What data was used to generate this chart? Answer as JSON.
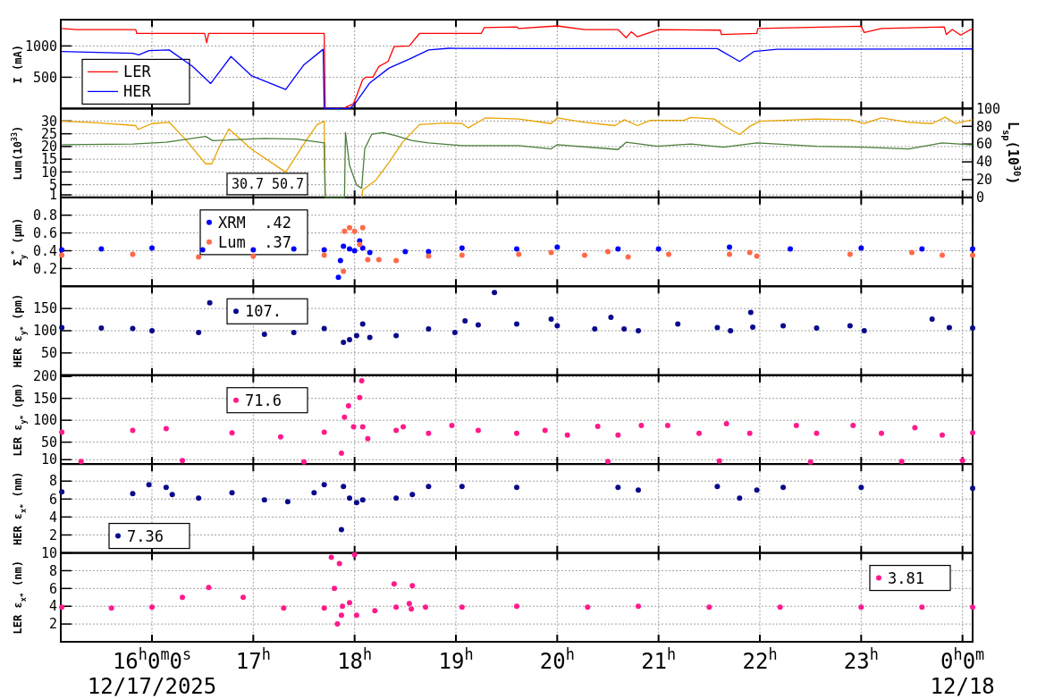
{
  "chart_data": [
    {
      "type": "line",
      "ylabel": "I (mA)",
      "xlim": [
        15.1,
        24.1
      ],
      "ylim": [
        0,
        1420
      ],
      "yticks": [
        500,
        1000
      ],
      "grid": true,
      "tick_labels": "y",
      "legend": "bottom left",
      "marker": "none",
      "line_style": "solid",
      "xticks": [
        {
          "value": 16,
          "label": null
        },
        {
          "value": 17,
          "label": null
        },
        {
          "value": 18,
          "label": null
        },
        {
          "value": 19,
          "label": null
        },
        {
          "value": 20,
          "label": null
        },
        {
          "value": 21,
          "label": null
        },
        {
          "value": 22,
          "label": null
        },
        {
          "value": 23,
          "label": null
        },
        {
          "value": 24,
          "label": null
        }
      ],
      "series": [
        {
          "name": "LER",
          "color": "#ff0000",
          "x": [
            15.11,
            15.26,
            15.84,
            15.85,
            16.52,
            16.54,
            16.56,
            17.7,
            17.71,
            17.89,
            17.99,
            18.08,
            18.11,
            18.18,
            18.24,
            18.33,
            18.39,
            18.54,
            18.64,
            19.25,
            19.28,
            19.6,
            19.62,
            20.0,
            20.27,
            20.6,
            20.68,
            20.73,
            20.79,
            21.0,
            21.61,
            21.62,
            21.97,
            21.98,
            23.0,
            23.03,
            23.2,
            23.82,
            23.84,
            23.9,
            23.98,
            24.1
          ],
          "values": [
            1278,
            1262,
            1262,
            1199,
            1199,
            1052,
            1199,
            1199,
            0,
            0,
            79,
            463,
            500,
            500,
            673,
            752,
            989,
            1000,
            1199,
            1199,
            1294,
            1305,
            1278,
            1320,
            1262,
            1262,
            1131,
            1226,
            1147,
            1262,
            1252,
            1183,
            1199,
            1278,
            1315,
            1215,
            1278,
            1305,
            1183,
            1262,
            1173,
            1278
          ]
        },
        {
          "name": "HER",
          "color": "#0000ff",
          "x": [
            15.11,
            15.81,
            15.87,
            15.97,
            16.17,
            16.4,
            16.58,
            16.78,
            16.98,
            17.32,
            17.5,
            17.69,
            17.7,
            17.95,
            18.0,
            18.15,
            18.34,
            18.54,
            18.73,
            18.93,
            19.62,
            21.58,
            21.8,
            21.94,
            22.17,
            24.1
          ],
          "values": [
            910,
            884,
            857,
            926,
            936,
            673,
            400,
            831,
            526,
            305,
            700,
            947,
            0,
            0,
            68,
            410,
            647,
            789,
            936,
            963,
            958,
            958,
            752,
            910,
            947,
            952
          ]
        }
      ]
    },
    {
      "type": "line",
      "ylabel": "Lum(10$^{33}$)",
      "y2label": "L$_{sp}$(10$^{30}$)",
      "xlim": [
        15.1,
        24.1
      ],
      "ylim": [
        0,
        34.9
      ],
      "yticks": [
        1,
        5,
        10,
        15,
        20,
        25,
        30
      ],
      "y2lim": [
        0,
        100
      ],
      "y2ticks": [
        0,
        20,
        40,
        60,
        80,
        100
      ],
      "grid": true,
      "tick_labels": "y",
      "marker": "none",
      "line_style": "solid",
      "annotations": [
        "30.7",
        "50.7"
      ],
      "xticks": [
        {
          "value": 16,
          "label": null
        },
        {
          "value": 17,
          "label": null
        },
        {
          "value": 18,
          "label": null
        },
        {
          "value": 19,
          "label": null
        },
        {
          "value": 20,
          "label": null
        },
        {
          "value": 21,
          "label": null
        },
        {
          "value": 22,
          "label": null
        },
        {
          "value": 23,
          "label": null
        },
        {
          "value": 24,
          "label": null
        }
      ],
      "series": [
        {
          "color": "#e8a400",
          "x": [
            15.11,
            15.49,
            15.84,
            15.86,
            16.0,
            16.17,
            16.33,
            16.53,
            16.59,
            16.67,
            16.76,
            16.98,
            17.32,
            17.53,
            17.63,
            17.7,
            17.71,
            17.8,
            17.97,
            18.07,
            18.08,
            18.21,
            18.34,
            18.47,
            18.64,
            18.9,
            19.06,
            19.12,
            19.29,
            19.62,
            19.94,
            20.0,
            20.27,
            20.57,
            20.66,
            20.79,
            20.92,
            21.25,
            21.32,
            21.55,
            21.64,
            21.8,
            21.9,
            22.0,
            22.56,
            22.89,
            23.03,
            23.2,
            23.47,
            23.7,
            23.83,
            23.93,
            24.1
          ],
          "values": [
            30,
            29.2,
            28.2,
            26.7,
            29,
            29.5,
            22.8,
            13.2,
            13.2,
            20.3,
            26.9,
            19,
            9.9,
            22.8,
            28.6,
            29.9,
            0,
            null,
            null,
            0,
            2.9,
            6.8,
            13.8,
            21.5,
            28.6,
            29.2,
            29,
            27.3,
            31.2,
            30.8,
            29,
            31.2,
            29.5,
            28.2,
            30.5,
            28.2,
            30.3,
            30.3,
            31.4,
            30.8,
            28.2,
            24.7,
            27.9,
            29.9,
            30.8,
            30.5,
            29,
            31.2,
            29.5,
            29,
            31.5,
            29,
            30.5
          ]
        },
        {
          "color": "#4a7f3a",
          "axis": "y2",
          "x": [
            15.11,
            15.81,
            16.14,
            16.53,
            16.6,
            17.11,
            17.43,
            17.7,
            17.71,
            17.9,
            17.91,
            17.95,
            18.02,
            18.07,
            18.1,
            18.17,
            18.28,
            18.41,
            18.57,
            18.73,
            19.06,
            19.62,
            19.94,
            20.0,
            20.6,
            20.68,
            20.99,
            21.32,
            21.64,
            21.97,
            22.56,
            23.0,
            23.47,
            23.8,
            24.1
          ],
          "values": [
            59.4,
            60.1,
            62,
            68.6,
            63.8,
            66.4,
            65.7,
            61.3,
            0,
            0,
            73,
            36,
            14,
            10.3,
            54.6,
            71.2,
            73,
            69.4,
            63.8,
            61.3,
            58.3,
            58.3,
            54.6,
            59.4,
            53.9,
            62,
            57.6,
            60.1,
            56.5,
            61.3,
            57.6,
            56.5,
            54.6,
            61.3,
            59
          ]
        }
      ]
    },
    {
      "type": "scatter",
      "ylabel": "Σ$_{y}$$^{*}$ (µm)",
      "xlim": [
        15.1,
        24.1
      ],
      "ylim": [
        0,
        1
      ],
      "yticks": [
        0.2,
        0.4,
        0.6,
        0.8
      ],
      "grid": true,
      "tick_labels": "y",
      "legend": "top left",
      "marker": "circle",
      "xticks": [
        {
          "value": 16,
          "label": null
        },
        {
          "value": 17,
          "label": null
        },
        {
          "value": 18,
          "label": null
        },
        {
          "value": 19,
          "label": null
        },
        {
          "value": 20,
          "label": null
        },
        {
          "value": 21,
          "label": null
        },
        {
          "value": 22,
          "label": null
        },
        {
          "value": 23,
          "label": null
        },
        {
          "value": 24,
          "label": null
        }
      ],
      "series": [
        {
          "name": "XRM  .42",
          "color": "#0000ff",
          "x": [
            15.11,
            15.5,
            16.0,
            16.5,
            17.0,
            17.4,
            17.7,
            17.84,
            17.86,
            17.89,
            17.95,
            18.0,
            18.05,
            18.08,
            18.15,
            18.5,
            18.73,
            19.06,
            19.6,
            20.0,
            20.6,
            21.0,
            21.7,
            22.3,
            23.0,
            23.6,
            24.1
          ],
          "values": [
            0.41,
            0.42,
            0.43,
            0.41,
            0.41,
            0.42,
            0.41,
            0.1,
            0.29,
            0.45,
            0.42,
            0.4,
            0.51,
            0.43,
            0.38,
            0.39,
            0.39,
            0.43,
            0.42,
            0.44,
            0.42,
            0.42,
            0.44,
            0.42,
            0.43,
            0.42,
            0.42
          ]
        },
        {
          "name": "Lum  .37",
          "color": "#ff6a4a",
          "x": [
            15.11,
            15.81,
            16.46,
            17.0,
            17.7,
            17.89,
            17.9,
            17.95,
            18.0,
            18.05,
            18.08,
            18.13,
            18.24,
            18.41,
            18.73,
            19.06,
            19.62,
            19.94,
            20.27,
            20.5,
            20.7,
            21.1,
            21.7,
            21.9,
            21.97,
            22.89,
            23.5,
            23.8,
            24.1
          ],
          "values": [
            0.35,
            0.36,
            0.33,
            0.34,
            0.35,
            0.17,
            0.62,
            0.66,
            0.62,
            0.47,
            0.66,
            0.3,
            0.3,
            0.29,
            0.34,
            0.35,
            0.36,
            0.38,
            0.35,
            0.39,
            0.33,
            0.36,
            0.36,
            0.38,
            0.34,
            0.36,
            0.38,
            0.35,
            0.35
          ]
        }
      ]
    },
    {
      "type": "scatter",
      "ylabel": "HER ε$_{y*}$ (pm)",
      "xlim": [
        15.1,
        24.1
      ],
      "ylim": [
        0,
        200
      ],
      "yticks": [
        50,
        100,
        150
      ],
      "grid": true,
      "tick_labels": "y",
      "legend": "top left",
      "marker": "circle",
      "xticks": [
        {
          "value": 16,
          "label": null
        },
        {
          "value": 17,
          "label": null
        },
        {
          "value": 18,
          "label": null
        },
        {
          "value": 19,
          "label": null
        },
        {
          "value": 20,
          "label": null
        },
        {
          "value": 21,
          "label": null
        },
        {
          "value": 22,
          "label": null
        },
        {
          "value": 23,
          "label": null
        },
        {
          "value": 24,
          "label": null
        }
      ],
      "series": [
        {
          "name": "107.",
          "color": "#0a0a8c",
          "x": [
            15.11,
            15.5,
            15.81,
            16.0,
            16.46,
            16.57,
            17.11,
            17.4,
            17.7,
            17.89,
            17.95,
            18.02,
            18.08,
            18.15,
            18.41,
            18.73,
            18.99,
            19.09,
            19.22,
            19.38,
            19.6,
            19.94,
            20.0,
            20.37,
            20.53,
            20.66,
            20.8,
            21.19,
            21.58,
            21.71,
            21.91,
            21.93,
            22.23,
            22.56,
            22.89,
            23.03,
            23.7,
            23.87,
            24.1
          ],
          "values": [
            107,
            106,
            105,
            100,
            96,
            163,
            92,
            96,
            105,
            74,
            80,
            89,
            115,
            85,
            89,
            104,
            96,
            122,
            113,
            186,
            115,
            126,
            111,
            104,
            130,
            104,
            100,
            115,
            107,
            100,
            141,
            108,
            111,
            106,
            111,
            100,
            126,
            107,
            106
          ]
        }
      ]
    },
    {
      "type": "scatter",
      "ylabel": "LER ε$_{y*}$ (pm)",
      "xlim": [
        15.1,
        24.1
      ],
      "ylim": [
        0,
        203
      ],
      "yticks": [
        10,
        50,
        100,
        150,
        200
      ],
      "grid": true,
      "tick_labels": "y",
      "legend": "top left",
      "marker": "circle",
      "xticks": [
        {
          "value": 16,
          "label": null
        },
        {
          "value": 17,
          "label": null
        },
        {
          "value": 18,
          "label": null
        },
        {
          "value": 19,
          "label": null
        },
        {
          "value": 20,
          "label": null
        },
        {
          "value": 21,
          "label": null
        },
        {
          "value": 22,
          "label": null
        },
        {
          "value": 23,
          "label": null
        },
        {
          "value": 24,
          "label": null
        }
      ],
      "series": [
        {
          "name": "71.6",
          "color": "#ff1a8c",
          "x": [
            15.11,
            15.3,
            15.81,
            16.14,
            16.3,
            16.79,
            17.27,
            17.5,
            17.7,
            17.87,
            17.9,
            17.94,
            17.99,
            18.05,
            18.07,
            18.08,
            18.13,
            18.41,
            18.48,
            18.73,
            18.96,
            19.22,
            19.6,
            19.88,
            20.1,
            20.4,
            20.5,
            20.6,
            20.83,
            21.09,
            21.4,
            21.6,
            21.67,
            21.9,
            22.36,
            22.5,
            22.56,
            22.92,
            23.2,
            23.4,
            23.53,
            23.8,
            24.0,
            24.1
          ],
          "values": [
            73,
            6,
            77,
            81,
            8,
            71,
            62,
            5,
            73,
            25,
            107,
            133,
            85,
            152,
            190,
            85,
            58,
            77,
            85,
            70,
            88,
            77,
            70,
            77,
            66,
            86,
            6,
            66,
            88,
            88,
            70,
            7,
            92,
            70,
            88,
            5,
            70,
            88,
            70,
            6,
            83,
            66,
            8,
            71
          ]
        }
      ]
    },
    {
      "type": "scatter",
      "ylabel": "HER ε$_{x*}$ (nm)",
      "xlim": [
        15.1,
        24.1
      ],
      "ylim": [
        0,
        9.9
      ],
      "yticks": [
        2,
        4,
        6,
        8
      ],
      "grid": true,
      "tick_labels": "y",
      "legend": "bottom left",
      "marker": "circle",
      "xticks": [
        {
          "value": 16,
          "label": null
        },
        {
          "value": 17,
          "label": null
        },
        {
          "value": 18,
          "label": null
        },
        {
          "value": 19,
          "label": null
        },
        {
          "value": 20,
          "label": null
        },
        {
          "value": 21,
          "label": null
        },
        {
          "value": 22,
          "label": null
        },
        {
          "value": 23,
          "label": null
        },
        {
          "value": 24,
          "label": null
        }
      ],
      "series": [
        {
          "name": "7.36",
          "color": "#0a0a8c",
          "x": [
            15.11,
            15.81,
            15.97,
            16.14,
            16.2,
            16.46,
            16.79,
            17.11,
            17.34,
            17.6,
            17.7,
            17.87,
            17.89,
            17.95,
            18.02,
            18.08,
            18.41,
            18.57,
            18.73,
            19.06,
            19.6,
            20.6,
            20.8,
            21.58,
            21.8,
            21.97,
            22.23,
            23.0,
            24.1
          ],
          "values": [
            6.8,
            6.6,
            7.6,
            7.3,
            6.5,
            6.1,
            6.7,
            5.9,
            5.7,
            6.7,
            7.6,
            2.6,
            7.4,
            6.1,
            5.6,
            5.9,
            6.1,
            6.5,
            7.4,
            7.4,
            7.3,
            7.3,
            7.0,
            7.4,
            6.1,
            7.0,
            7.3,
            7.3,
            7.2
          ]
        }
      ]
    },
    {
      "type": "scatter",
      "ylabel": "LER ε$_{x*}$ (nm)",
      "xlim": [
        15.1,
        24.1
      ],
      "ylim": [
        0,
        10
      ],
      "yticks": [
        2,
        4,
        6,
        8,
        10
      ],
      "grid": true,
      "legend": "top right",
      "marker": "circle",
      "xticks": [
        {
          "value": 16,
          "label": "16$^{h}$0$^{m}$0$^{s}$\n12/17/2025"
        },
        {
          "value": 17,
          "label": "17$^{h}$"
        },
        {
          "value": 18,
          "label": "18$^{h}$"
        },
        {
          "value": 19,
          "label": "19$^{h}$"
        },
        {
          "value": 20,
          "label": "20$^{h}$"
        },
        {
          "value": 21,
          "label": "21$^{h}$"
        },
        {
          "value": 22,
          "label": "22$^{h}$"
        },
        {
          "value": 23,
          "label": "23$^{h}$"
        },
        {
          "value": 24,
          "label": "0$^{h}$0$^{m}$\n12/18"
        }
      ],
      "series": [
        {
          "name": "3.81",
          "color": "#ff1a8c",
          "x": [
            15.11,
            15.6,
            16.0,
            16.3,
            16.56,
            16.9,
            17.3,
            17.7,
            17.77,
            17.8,
            17.83,
            17.85,
            17.87,
            17.88,
            17.95,
            18.0,
            18.02,
            18.2,
            18.39,
            18.41,
            18.54,
            18.56,
            18.57,
            18.7,
            19.06,
            19.6,
            20.3,
            20.8,
            21.5,
            22.2,
            23.0,
            23.6,
            24.1
          ],
          "values": [
            3.9,
            3.8,
            3.9,
            5,
            6.1,
            5,
            3.8,
            3.8,
            9.5,
            6,
            2,
            8.8,
            3.0,
            4,
            4.4,
            9.8,
            3.0,
            3.5,
            6.5,
            3.9,
            4.3,
            3.7,
            6.3,
            3.9,
            3.9,
            4.0,
            3.9,
            4.0,
            3.9,
            3.9,
            3.9,
            3.9,
            3.9
          ]
        }
      ]
    }
  ]
}
